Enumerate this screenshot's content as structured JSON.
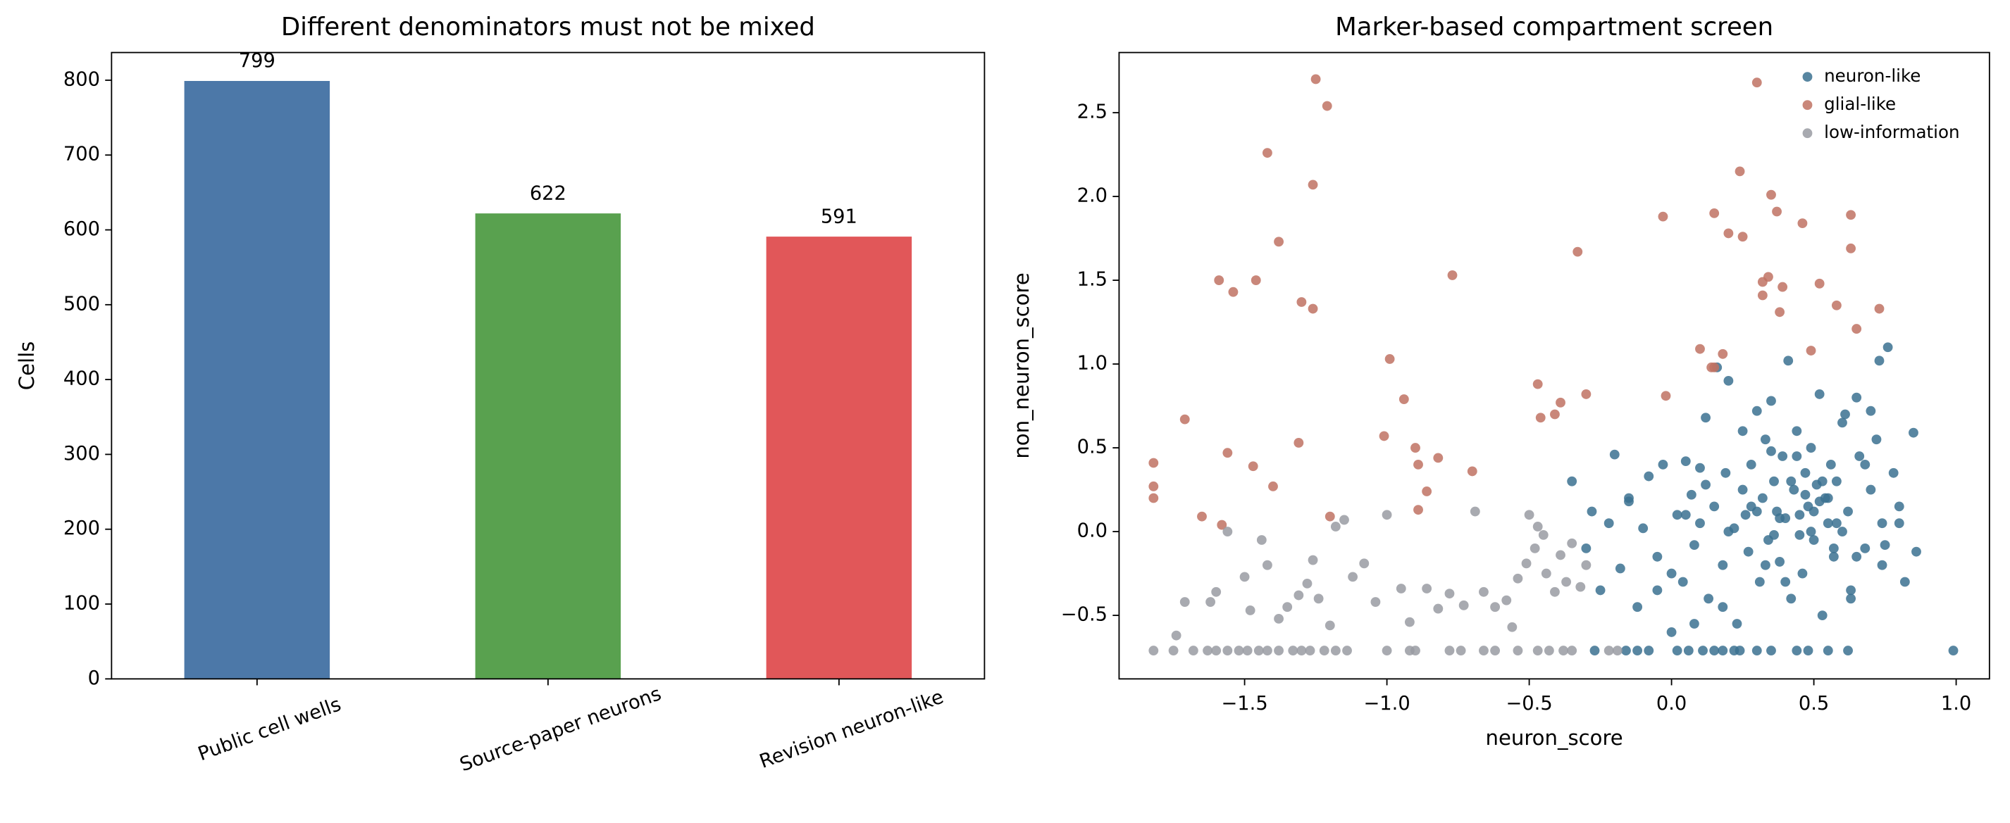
{
  "chart_data": [
    {
      "type": "bar",
      "title": "Different denominators must not be mixed",
      "ylabel": "Cells",
      "categories": [
        "Public cell wells",
        "Source-paper neurons",
        "Revision neuron-like"
      ],
      "values": [
        799,
        622,
        591
      ],
      "colors": [
        "#4c78a8",
        "#59a14f",
        "#e15759"
      ],
      "ylim": [
        0,
        837
      ],
      "yticks": [
        0,
        100,
        200,
        300,
        400,
        500,
        600,
        700,
        800
      ]
    },
    {
      "type": "scatter",
      "title": "Marker-based compartment screen",
      "xlabel": "neuron_score",
      "ylabel": "non_neuron_score",
      "xlim": [
        -1.941,
        1.117
      ],
      "ylim": [
        -0.879,
        2.859
      ],
      "legend": "upper right",
      "xticks": [
        {
          "value": -1.5,
          "label": "−1.5"
        },
        {
          "value": -1.0,
          "label": "−1.0"
        },
        {
          "value": -0.5,
          "label": "−0.5"
        },
        {
          "value": 0.0,
          "label": "0.0"
        },
        0.5,
        {
          "value": 1.0,
          "label": "1.0"
        }
      ],
      "yticks": [
        {
          "value": -0.5,
          "label": "−0.5"
        },
        {
          "value": 0.0,
          "label": "0.0"
        },
        0.5,
        {
          "value": 1.0,
          "label": "1.0"
        },
        1.5,
        {
          "value": 2.0,
          "label": "2.0"
        },
        2.5
      ],
      "series": [
        {
          "name": "neuron-like",
          "color": "#3b7191",
          "x": [
            -0.27,
            -0.16,
            -0.08,
            0.02,
            0.06,
            0.11,
            0.15,
            0.18,
            0.24,
            0.3,
            0.35,
            0.44,
            0.48,
            0.55,
            0.62,
            0.99,
            -0.12,
            0.22,
            -0.35,
            -0.3,
            -0.28,
            -0.25,
            -0.22,
            -0.2,
            -0.18,
            -0.15,
            -0.12,
            -0.1,
            -0.08,
            -0.05,
            -0.03,
            0.0,
            0.02,
            0.04,
            0.05,
            0.07,
            0.08,
            0.1,
            0.12,
            0.13,
            0.15,
            0.16,
            0.18,
            0.19,
            0.2,
            0.22,
            0.23,
            0.25,
            0.26,
            0.27,
            0.28,
            0.3,
            0.31,
            0.32,
            0.33,
            0.34,
            0.35,
            0.36,
            0.37,
            0.38,
            0.39,
            0.4,
            0.41,
            0.42,
            0.43,
            0.44,
            0.45,
            0.46,
            0.47,
            0.48,
            0.49,
            0.5,
            0.51,
            0.52,
            0.53,
            0.54,
            0.55,
            0.56,
            0.57,
            0.58,
            0.6,
            0.62,
            0.63,
            0.65,
            0.66,
            0.68,
            0.7,
            0.72,
            0.74,
            0.76,
            0.78,
            0.8,
            0.82,
            0.85,
            0.86,
            -0.15,
            0.0,
            0.05,
            0.1,
            0.2,
            0.28,
            0.33,
            0.38,
            0.42,
            0.45,
            0.5,
            0.55,
            0.6,
            0.65,
            0.7,
            0.75,
            0.8,
            0.18,
            0.25,
            0.35,
            0.4,
            0.47,
            0.52,
            0.58,
            0.63,
            0.68,
            0.73,
            -0.05,
            0.08,
            0.12,
            0.3,
            0.36,
            0.44,
            0.49,
            0.53,
            0.57,
            0.61,
            0.74
          ],
          "y": [
            -0.71,
            -0.71,
            -0.71,
            -0.71,
            -0.71,
            -0.71,
            -0.71,
            -0.71,
            -0.71,
            -0.71,
            -0.71,
            -0.71,
            -0.71,
            -0.71,
            -0.71,
            -0.71,
            -0.71,
            -0.71,
            0.3,
            -0.1,
            0.12,
            -0.35,
            0.05,
            0.46,
            -0.22,
            0.18,
            -0.45,
            0.02,
            0.33,
            -0.15,
            0.4,
            -0.6,
            0.1,
            -0.3,
            0.42,
            0.22,
            -0.08,
            0.05,
            0.68,
            -0.4,
            0.15,
            0.98,
            -0.2,
            0.35,
            0.9,
            0.02,
            -0.55,
            0.25,
            0.1,
            -0.12,
            0.4,
            0.72,
            -0.3,
            0.2,
            0.55,
            -0.05,
            0.78,
            0.3,
            0.12,
            -0.18,
            0.45,
            0.08,
            1.02,
            -0.4,
            0.25,
            0.6,
            0.1,
            -0.25,
            0.35,
            0.15,
            0.5,
            -0.05,
            0.28,
            0.82,
            -0.5,
            0.2,
            0.05,
            0.4,
            -0.15,
            0.3,
            0.65,
            0.12,
            -0.35,
            0.8,
            0.45,
            -0.1,
            0.25,
            0.55,
            -0.2,
            1.1,
            0.35,
            0.05,
            -0.3,
            0.59,
            -0.12,
            0.2,
            -0.25,
            0.1,
            0.38,
            0.0,
            0.15,
            -0.2,
            0.08,
            0.3,
            -0.02,
            0.12,
            0.2,
            0.0,
            -0.15,
            0.72,
            -0.08,
            0.15,
            -0.45,
            0.6,
            0.48,
            -0.3,
            0.22,
            0.18,
            0.05,
            -0.4,
            0.4,
            1.02,
            -0.35,
            -0.55,
            0.28,
            0.12,
            -0.02,
            0.45,
            0.0,
            0.3,
            -0.1,
            0.7,
            0.05
          ]
        },
        {
          "name": "glial-like",
          "color": "#c07263",
          "x": [
            -1.82,
            -1.82,
            -1.82,
            -1.71,
            -1.65,
            -1.59,
            -1.58,
            -1.56,
            -1.54,
            -1.46,
            -1.47,
            -1.42,
            -1.4,
            -1.38,
            -1.31,
            -1.3,
            -1.26,
            -1.26,
            -1.25,
            -1.21,
            -1.2,
            -0.99,
            -1.01,
            -0.94,
            -0.9,
            -0.89,
            -0.89,
            -0.86,
            -0.82,
            -0.77,
            -0.7,
            -0.47,
            -0.46,
            -0.41,
            -0.39,
            -0.33,
            -0.3,
            -0.03,
            -0.02,
            0.1,
            0.14,
            0.15,
            0.15,
            0.18,
            0.2,
            0.24,
            0.25,
            0.3,
            0.32,
            0.34,
            0.32,
            0.35,
            0.37,
            0.38,
            0.39,
            0.46,
            0.49,
            0.52,
            0.58,
            0.63,
            0.63,
            0.65,
            0.73
          ],
          "y": [
            0.41,
            0.27,
            0.2,
            0.67,
            0.09,
            1.5,
            0.04,
            0.47,
            1.43,
            1.5,
            0.39,
            2.26,
            0.27,
            1.73,
            0.53,
            1.37,
            1.33,
            2.07,
            2.7,
            2.54,
            0.09,
            1.03,
            0.57,
            0.79,
            0.5,
            0.4,
            0.13,
            0.24,
            0.44,
            1.53,
            0.36,
            0.88,
            0.68,
            0.7,
            0.77,
            1.67,
            0.82,
            1.88,
            0.81,
            1.09,
            0.98,
            0.98,
            1.9,
            1.06,
            1.78,
            2.15,
            1.76,
            2.68,
            1.49,
            1.52,
            1.41,
            2.01,
            1.91,
            1.31,
            1.46,
            1.84,
            1.08,
            1.48,
            1.35,
            1.89,
            1.69,
            1.21,
            1.33
          ]
        },
        {
          "name": "low-information",
          "color": "#999ba2",
          "x": [
            -1.82,
            -1.68,
            -1.63,
            -1.6,
            -1.56,
            -1.52,
            -1.49,
            -1.45,
            -1.42,
            -1.38,
            -1.33,
            -1.3,
            -1.22,
            -1.18,
            -1.14,
            -1.0,
            -0.92,
            -0.9,
            -0.78,
            -0.74,
            -0.66,
            -0.62,
            -0.54,
            -0.47,
            -0.43,
            -0.38,
            -0.35,
            -0.22,
            -0.19,
            -1.75,
            -1.27,
            -1.74,
            -1.71,
            -1.6,
            -1.56,
            -1.5,
            -1.48,
            -1.44,
            -1.42,
            -1.38,
            -1.35,
            -1.31,
            -1.28,
            -1.26,
            -1.2,
            -1.18,
            -1.15,
            -1.12,
            -1.08,
            -1.04,
            -1.0,
            -0.95,
            -0.92,
            -0.86,
            -0.78,
            -0.73,
            -0.69,
            -0.66,
            -0.62,
            -0.58,
            -0.54,
            -0.51,
            -0.48,
            -0.47,
            -0.44,
            -0.41,
            -0.39,
            -0.37,
            -0.35,
            -0.32,
            -0.3,
            -0.56,
            -0.82,
            -1.62,
            -1.24,
            -0.5,
            -0.45
          ],
          "y": [
            -0.71,
            -0.71,
            -0.71,
            -0.71,
            -0.71,
            -0.71,
            -0.71,
            -0.71,
            -0.71,
            -0.71,
            -0.71,
            -0.71,
            -0.71,
            -0.71,
            -0.71,
            -0.71,
            -0.71,
            -0.71,
            -0.71,
            -0.71,
            -0.71,
            -0.71,
            -0.71,
            -0.71,
            -0.71,
            -0.71,
            -0.71,
            -0.71,
            -0.71,
            -0.71,
            -0.71,
            -0.62,
            -0.42,
            -0.36,
            0.0,
            -0.27,
            -0.47,
            -0.05,
            -0.2,
            -0.52,
            -0.45,
            -0.38,
            -0.31,
            -0.17,
            -0.56,
            0.03,
            0.07,
            -0.27,
            -0.19,
            -0.42,
            0.1,
            -0.34,
            -0.54,
            -0.34,
            -0.37,
            -0.44,
            0.12,
            -0.36,
            -0.45,
            -0.41,
            -0.28,
            -0.19,
            -0.1,
            0.03,
            -0.25,
            -0.36,
            -0.14,
            -0.3,
            -0.07,
            -0.33,
            -0.2,
            -0.57,
            -0.46,
            -0.42,
            -0.4,
            0.1,
            -0.02
          ]
        }
      ]
    }
  ]
}
